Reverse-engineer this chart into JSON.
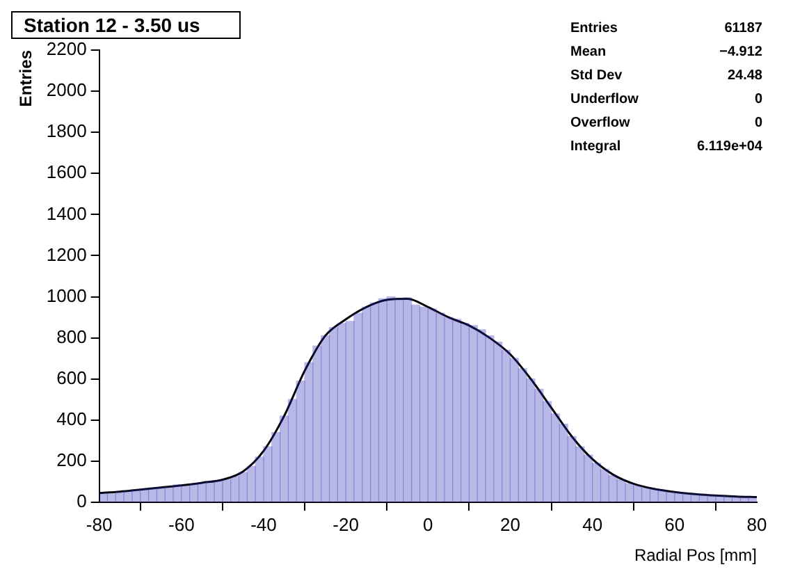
{
  "chart_data": {
    "type": "histogram",
    "title": "Station 12 - 3.50 us",
    "xlabel": "Radial Pos [mm]",
    "ylabel": "Entries",
    "bins": [
      -80,
      -78,
      -76,
      -74,
      -72,
      -70,
      -68,
      -66,
      -64,
      -62,
      -60,
      -58,
      -56,
      -54,
      -52,
      -50,
      -48,
      -46,
      -44,
      -42,
      -40,
      -38,
      -36,
      -34,
      -32,
      -30,
      -28,
      -26,
      -24,
      -22,
      -20,
      -18,
      -16,
      -14,
      -12,
      -10,
      -8,
      -6,
      -4,
      -2,
      0,
      2,
      4,
      6,
      8,
      10,
      12,
      14,
      16,
      18,
      20,
      22,
      24,
      26,
      28,
      30,
      32,
      34,
      36,
      38,
      40,
      42,
      44,
      46,
      48,
      50,
      52,
      54,
      56,
      58,
      60,
      62,
      64,
      66,
      68,
      70,
      72,
      74,
      76,
      78,
      80
    ],
    "series": [
      {
        "type": "histogram",
        "color": "#2a2ab8",
        "values": [
          45,
          40,
          50,
          55,
          60,
          65,
          70,
          72,
          75,
          85,
          80,
          90,
          95,
          100,
          105,
          110,
          125,
          145,
          175,
          220,
          270,
          340,
          420,
          500,
          590,
          680,
          760,
          810,
          850,
          870,
          880,
          920,
          950,
          970,
          990,
          1000,
          990,
          995,
          960,
          950,
          940,
          920,
          900,
          890,
          870,
          860,
          840,
          810,
          780,
          740,
          700,
          650,
          600,
          550,
          490,
          430,
          380,
          320,
          270,
          230,
          190,
          160,
          130,
          110,
          90,
          80,
          70,
          65,
          60,
          50,
          48,
          45,
          40,
          38,
          35,
          33,
          30,
          28,
          27,
          25
        ]
      },
      {
        "type": "line",
        "color": "#000000",
        "x": [
          -80,
          -75,
          -70,
          -65,
          -60,
          -55,
          -50,
          -45,
          -40,
          -35,
          -30,
          -25,
          -20,
          -15,
          -10,
          -5,
          0,
          5,
          10,
          15,
          20,
          25,
          30,
          35,
          40,
          45,
          50,
          55,
          60,
          65,
          70,
          75,
          80
        ],
        "values": [
          45,
          52,
          62,
          72,
          82,
          95,
          110,
          150,
          250,
          420,
          640,
          810,
          890,
          950,
          985,
          990,
          950,
          900,
          860,
          800,
          720,
          600,
          460,
          320,
          210,
          135,
          90,
          65,
          50,
          40,
          33,
          28,
          25
        ]
      }
    ],
    "xlim": [
      -80,
      80
    ],
    "xticks": [
      -80,
      -60,
      -40,
      -20,
      0,
      20,
      40,
      60,
      80
    ],
    "ylim": [
      0,
      2200
    ],
    "yticks": [
      0,
      200,
      400,
      600,
      800,
      1000,
      1200,
      1400,
      1600,
      1800,
      2000,
      2200
    ],
    "grid": false,
    "legend": false,
    "annotations": [
      "Entries",
      "61187",
      "Mean",
      "−4.912",
      "Std Dev",
      "24.48",
      "Underflow",
      "0",
      "Overflow",
      "0",
      "Integral",
      "6.119e+04"
    ]
  }
}
